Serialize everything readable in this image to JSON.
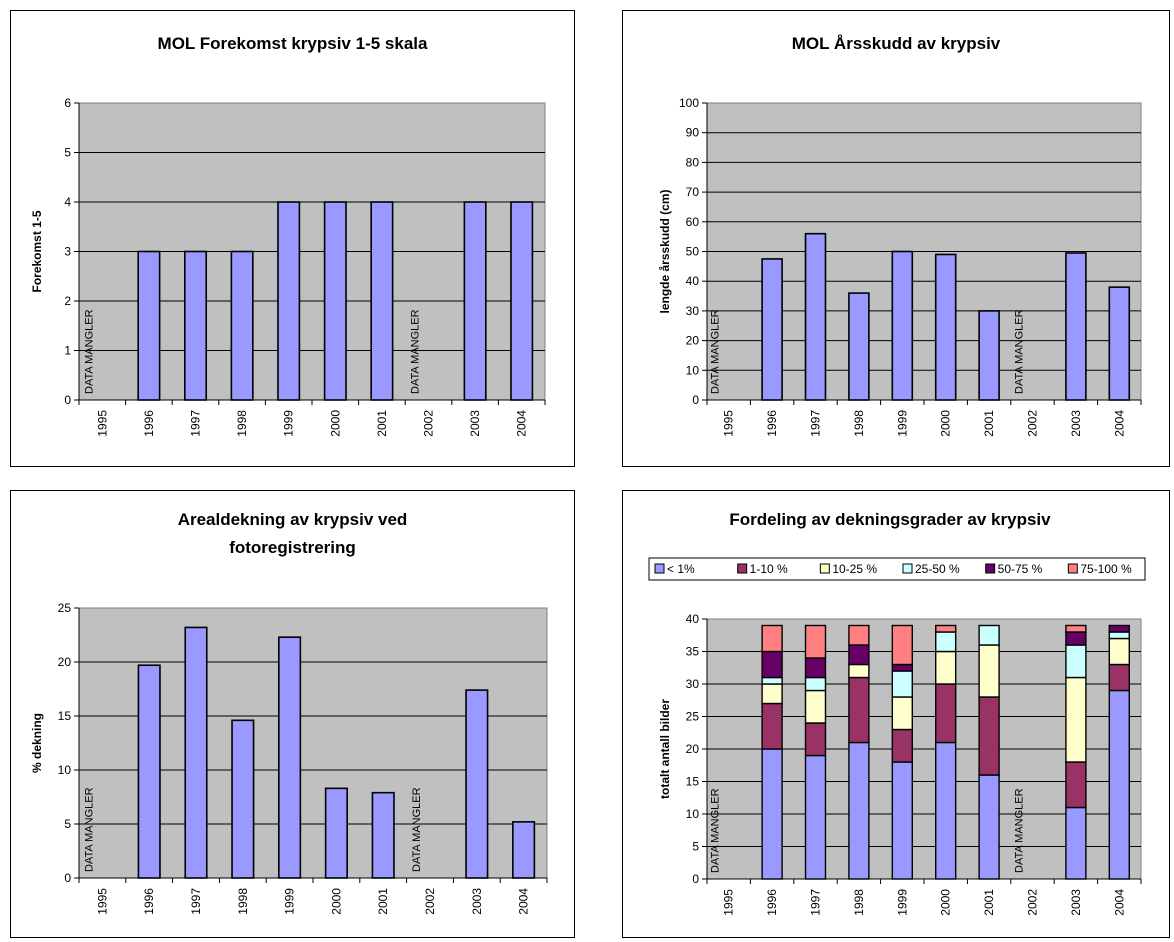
{
  "chart_data": [
    {
      "type": "bar",
      "title": "MOL Forekomst krypsiv 1-5 skala",
      "ylabel": "Forekomst 1-5",
      "xlabel": "",
      "categories": [
        "1995",
        "1996",
        "1997",
        "1998",
        "1999",
        "2000",
        "2001",
        "2002",
        "2003",
        "2004"
      ],
      "values": [
        null,
        3,
        3,
        3,
        4,
        4,
        4,
        null,
        4,
        4
      ],
      "ylim": [
        0,
        6
      ],
      "yticks": [
        0,
        1,
        2,
        3,
        4,
        5,
        6
      ],
      "grid": true,
      "missing_label": "DATA MANGLER",
      "colors": {
        "bar": "#9999ff",
        "plot_bg": "#c0c0c0"
      }
    },
    {
      "type": "bar",
      "title": "MOL Årsskudd av krypsiv",
      "ylabel": "lengde årsskudd (cm)",
      "xlabel": "",
      "categories": [
        "1995",
        "1996",
        "1997",
        "1998",
        "1999",
        "2000",
        "2001",
        "2002",
        "2003",
        "2004"
      ],
      "values": [
        null,
        47.5,
        56,
        36,
        50,
        49,
        30,
        null,
        49.5,
        38
      ],
      "ylim": [
        0,
        100
      ],
      "yticks": [
        0,
        10,
        20,
        30,
        40,
        50,
        60,
        70,
        80,
        90,
        100
      ],
      "grid": true,
      "missing_label": "DATA MANGLER",
      "colors": {
        "bar": "#9999ff",
        "plot_bg": "#c0c0c0"
      }
    },
    {
      "type": "bar",
      "title": "Arealdekning av krypsiv ved fotoregistrering",
      "title_lines": [
        "Arealdekning av krypsiv ved",
        "fotoregistrering"
      ],
      "ylabel": "% dekning",
      "xlabel": "",
      "categories": [
        "1995",
        "1996",
        "1997",
        "1998",
        "1999",
        "2000",
        "2001",
        "2002",
        "2003",
        "2004"
      ],
      "values": [
        null,
        19.7,
        23.2,
        14.6,
        22.3,
        8.3,
        7.9,
        null,
        17.4,
        5.2
      ],
      "ylim": [
        0,
        25
      ],
      "yticks": [
        0,
        5,
        10,
        15,
        20,
        25
      ],
      "grid": true,
      "missing_label": "DATA MANGLER",
      "colors": {
        "bar": "#9999ff",
        "plot_bg": "#c0c0c0"
      }
    },
    {
      "type": "bar",
      "stacked": true,
      "title": "Fordeling av dekningsgrader av krypsiv",
      "ylabel": "totalt antall bilder",
      "xlabel": "",
      "categories": [
        "1995",
        "1996",
        "1997",
        "1998",
        "1999",
        "2000",
        "2001",
        "2002",
        "2003",
        "2004"
      ],
      "ylim": [
        0,
        40
      ],
      "yticks": [
        0,
        5,
        10,
        15,
        20,
        25,
        30,
        35,
        40
      ],
      "grid": true,
      "legend_position": "top",
      "missing_label": "DATA MANGLER",
      "colors": {
        "plot_bg": "#c0c0c0"
      },
      "series": [
        {
          "name": "< 1%",
          "color": "#9999ff",
          "values": [
            null,
            20,
            19,
            21,
            18,
            21,
            16,
            null,
            11,
            29
          ]
        },
        {
          "name": "1-10 %",
          "color": "#993366",
          "values": [
            null,
            7,
            5,
            10,
            5,
            9,
            12,
            null,
            7,
            4
          ]
        },
        {
          "name": "10-25 %",
          "color": "#ffffcc",
          "values": [
            null,
            3,
            5,
            2,
            5,
            5,
            8,
            null,
            13,
            4
          ]
        },
        {
          "name": "25-50 %",
          "color": "#ccffff",
          "values": [
            null,
            1,
            2,
            0,
            4,
            3,
            3,
            null,
            5,
            1
          ]
        },
        {
          "name": "50-75 %",
          "color": "#660066",
          "values": [
            null,
            4,
            3,
            3,
            1,
            0,
            0,
            null,
            2,
            1
          ]
        },
        {
          "name": "75-100 %",
          "color": "#ff8080",
          "values": [
            null,
            4,
            5,
            3,
            6,
            1,
            0,
            null,
            1,
            0
          ]
        }
      ]
    }
  ]
}
